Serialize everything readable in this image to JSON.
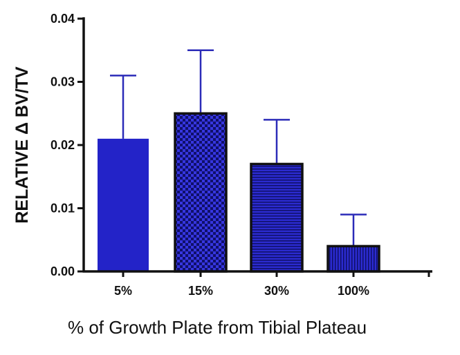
{
  "chart_data": {
    "type": "bar",
    "categories": [
      "5%",
      "15%",
      "30%",
      "100%"
    ],
    "values": [
      0.021,
      0.025,
      0.017,
      0.004
    ],
    "errors": [
      0.01,
      0.01,
      0.007,
      0.005
    ],
    "fill_patterns": [
      "solid",
      "checker",
      "horizontal-lines",
      "vertical-lines"
    ],
    "xlabel": "% of Growth Plate from Tibial Plateau",
    "ylabel": "RELATIVE Δ BV/TV",
    "ylim": [
      0,
      0.04
    ],
    "yticks": [
      "0.00",
      "0.01",
      "0.02",
      "0.03",
      "0.04"
    ],
    "ytick_values": [
      0,
      0.01,
      0.02,
      0.03,
      0.04
    ],
    "grid": false,
    "colors": {
      "bar": "#2323c8",
      "outline": "#111111",
      "error": "#2b2bb8",
      "axis": "#111111"
    }
  }
}
